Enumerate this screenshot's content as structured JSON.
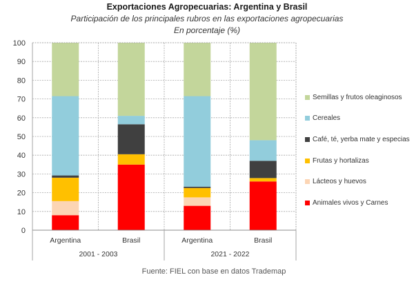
{
  "chart_data": {
    "type": "bar",
    "stacked": true,
    "title": "Exportaciones Agropecuarias: Argentina y Brasil",
    "subtitle": "Participación de los principales rubros en las exportaciones agropecuarias",
    "unit_label": "En porcentaje (%)",
    "xlabel": "",
    "ylabel": "",
    "ylim": [
      0,
      100
    ],
    "yticks": [
      0,
      10,
      20,
      30,
      40,
      50,
      60,
      70,
      80,
      90,
      100
    ],
    "grid": true,
    "legend_position": "right",
    "categories": [
      "Argentina",
      "Brasil",
      "Argentina",
      "Brasil"
    ],
    "groups": [
      {
        "label": "2001 - 2003",
        "categories": [
          0,
          1
        ]
      },
      {
        "label": "2021 - 2022",
        "categories": [
          2,
          3
        ]
      }
    ],
    "series": [
      {
        "name": "Animales vivos y Carnes",
        "color": "#FF0000",
        "values": [
          8,
          35,
          13,
          26
        ]
      },
      {
        "name": "Lácteos y huevos",
        "color": "#FCD5B4",
        "values": [
          7.5,
          0,
          4.5,
          0
        ]
      },
      {
        "name": "Frutas y hortalizas",
        "color": "#FFC000",
        "values": [
          12.5,
          5.5,
          5,
          1.8
        ]
      },
      {
        "name": "Café, té, yerba mate y especias",
        "color": "#404040",
        "values": [
          1.2,
          16,
          0.7,
          9.2
        ]
      },
      {
        "name": "Cereales",
        "color": "#92CDDC",
        "values": [
          42.3,
          4.5,
          48.3,
          11
        ]
      },
      {
        "name": "Semillas y frutos oleaginosos",
        "color": "#C3D69B",
        "values": [
          28.5,
          39,
          28.5,
          52
        ]
      }
    ],
    "legend_order": [
      5,
      4,
      3,
      2,
      1,
      0
    ],
    "source": "Fuente: FIEL con base en datos Trademap"
  }
}
